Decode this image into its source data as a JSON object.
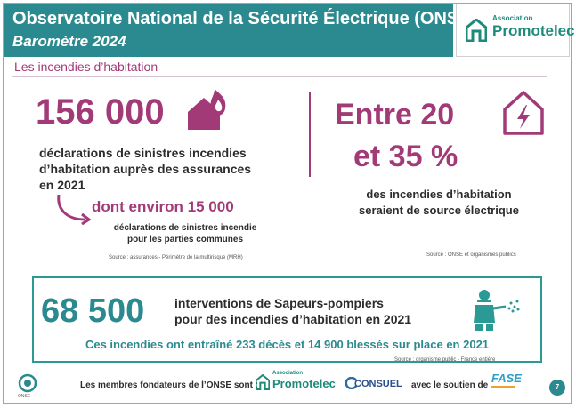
{
  "header": {
    "title": "Observatoire National de la Sécurité Électrique (ONSE)",
    "subtitle": "Baromètre  2024"
  },
  "logo": {
    "small": "Association",
    "big": "Promotelec"
  },
  "section_title": "Les incendies d’habitation",
  "left_stat": {
    "number": "156 000",
    "text_lines": [
      "déclarations de sinistres incendies",
      "d’habitation auprès des assurances",
      "en 2021"
    ],
    "sub_number": "dont environ 15 000",
    "sub_text_lines": [
      "déclarations de sinistres incendie",
      "pour les parties communes"
    ],
    "source": "Source : assurances - Périmètre de la multirisque (MRH)"
  },
  "right_stat": {
    "line1": "Entre 20",
    "line2": "et 35 %",
    "text_lines": [
      "des incendies d’habitation",
      "seraient de source électrique"
    ],
    "source": "Source : ONSE et organismes publics"
  },
  "bottom_stat": {
    "number": "68 500",
    "text_lines": [
      "interventions de Sapeurs-pompiers",
      "pour des incendies d’habitation en 2021"
    ],
    "summary": "Ces incendies ont entraîné 233 décès et 14 900 blessés sur place en 2021",
    "source": "Source : organisme public - France entière"
  },
  "footer": {
    "onse_label": "ONSE",
    "members_text": "Les membres fondateurs de l’ONSE sont :",
    "promotelec_small": "Association",
    "promotelec": "Promotelec",
    "consuel": "CONSUEL",
    "support_text": "avec le soutien de",
    "fase": "FASE",
    "page_number": "7"
  },
  "colors": {
    "teal": "#2b8a8f",
    "magenta": "#a23a78"
  },
  "icons": [
    "promotelec-logo-icon",
    "house-fire-icon",
    "house-lightning-icon",
    "firefighter-icon",
    "curved-arrow-icon",
    "onse-logo-icon",
    "consuel-logo-icon",
    "fase-logo-icon"
  ]
}
